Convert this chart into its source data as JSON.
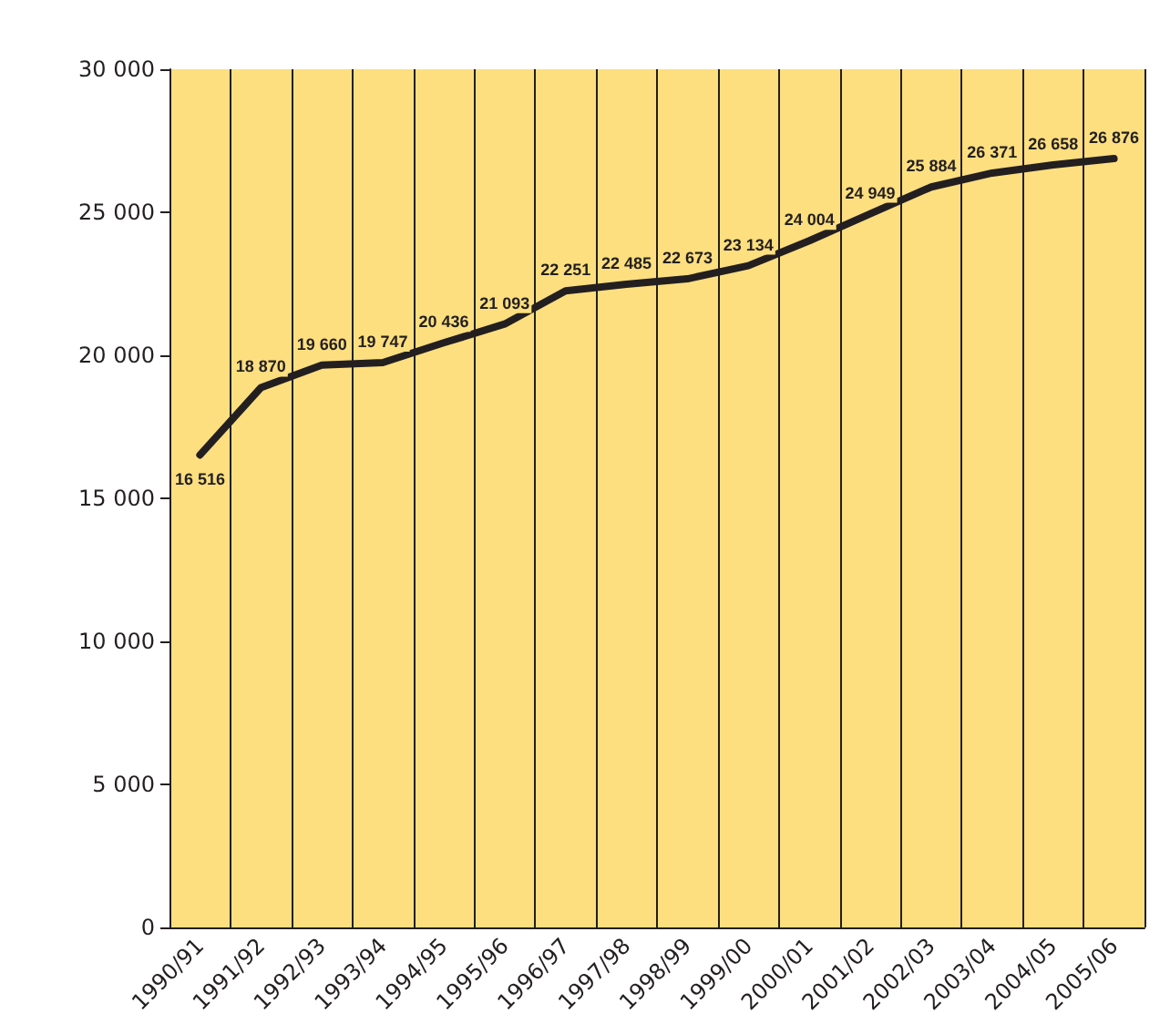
{
  "chart_data": {
    "type": "line",
    "categories": [
      "1990/91",
      "1991/92",
      "1992/93",
      "1993/94",
      "1994/95",
      "1995/96",
      "1996/97",
      "1997/98",
      "1998/99",
      "1999/00",
      "2000/01",
      "2001/02",
      "2002/03",
      "2003/04",
      "2004/05",
      "2005/06"
    ],
    "series": [
      {
        "color": "#231f20",
        "values": [
          16516,
          18870,
          19660,
          19747,
          20436,
          21093,
          22251,
          22485,
          22673,
          23134,
          24004,
          24949,
          25884,
          26371,
          26658,
          26876
        ],
        "value_labels": [
          "16 516",
          "18 870",
          "19 660",
          "19 747",
          "20 436",
          "21 093",
          "22 251",
          "22 485",
          "22 673",
          "23 134",
          "24 004",
          "24 949",
          "25 884",
          "26 371",
          "26 658",
          "26 876"
        ]
      }
    ],
    "ylim": [
      0,
      30000
    ],
    "yticks": [
      {
        "value": 0,
        "label": "0"
      },
      {
        "value": 5000,
        "label": "5 000"
      },
      {
        "value": 10000,
        "label": "10 000"
      },
      {
        "value": 15000,
        "label": "15 000"
      },
      {
        "value": 20000,
        "label": "20 000"
      },
      {
        "value": 25000,
        "label": "25 000"
      },
      {
        "value": 30000,
        "label": "30 000"
      }
    ],
    "grid": "x",
    "marker": "none",
    "line_style": "solid"
  }
}
